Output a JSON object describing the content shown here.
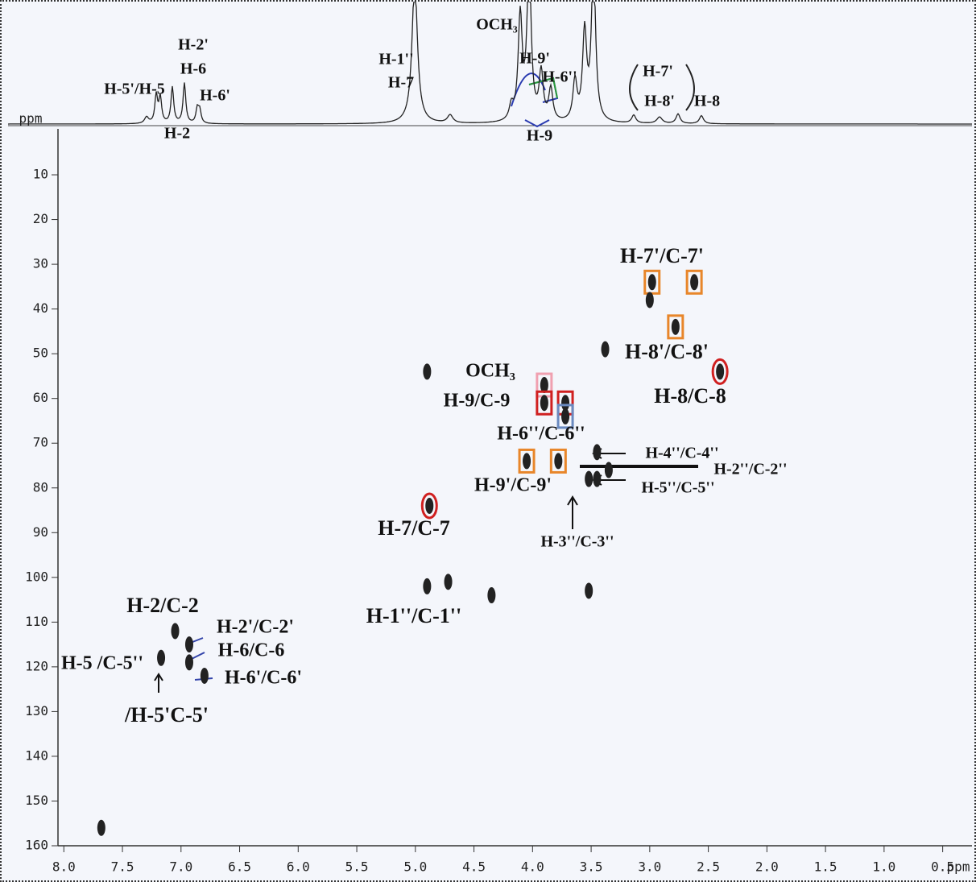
{
  "chart_data": {
    "type": "scatter",
    "x": [
      2.98,
      2.62,
      2.78,
      2.4,
      3.9,
      3.9,
      3.72,
      3.72,
      4.05,
      3.78,
      3.45,
      3.35,
      3.45,
      3.52,
      4.88,
      4.9,
      4.72,
      4.35,
      3.52,
      3.38,
      7.05,
      6.93,
      6.93,
      6.8,
      7.17,
      7.68,
      4.9,
      3.0
    ],
    "values": [
      34,
      34,
      44,
      54,
      57,
      61,
      61,
      64,
      74,
      74,
      72,
      76,
      78,
      78,
      84,
      102,
      101,
      104,
      103,
      49,
      112,
      115,
      119,
      122,
      118,
      156,
      54,
      38
    ],
    "color": "#222222",
    "xlim": [
      8.05,
      0.25
    ],
    "ylim": [
      0,
      160
    ],
    "xticks": [
      {
        "value": 8,
        "label": "8.0"
      },
      {
        "value": 7.5,
        "label": "7.5"
      },
      {
        "value": 7,
        "label": "7.0"
      },
      {
        "value": 6.5,
        "label": "6.5"
      },
      {
        "value": 6,
        "label": "6.0"
      },
      {
        "value": 5.5,
        "label": "5.5"
      },
      {
        "value": 5,
        "label": "5.0"
      },
      {
        "value": 4.5,
        "label": "4.5"
      },
      {
        "value": 4,
        "label": "4.0"
      },
      {
        "value": 3.5,
        "label": "3.5"
      },
      {
        "value": 3,
        "label": "3.0"
      },
      {
        "value": 2.5,
        "label": "2.5"
      },
      {
        "value": 2,
        "label": "2.0"
      },
      {
        "value": 1.5,
        "label": "1.5"
      },
      {
        "value": 1,
        "label": "1.0"
      },
      {
        "value": 0.5,
        "label": "0.5"
      }
    ],
    "yticks": [
      10,
      20,
      30,
      40,
      50,
      60,
      70,
      80,
      90,
      100,
      110,
      120,
      130,
      140,
      150,
      160
    ],
    "x_label": "ppm",
    "y_label": "ppm",
    "annotations": [
      "H-7'/C-7'",
      "H-8'/C-8'",
      "H-8/C-8",
      "OCH₃",
      "H-9/C-9",
      "H-6''/C-6''",
      "H-4''/C-4''",
      "H-2''/C-2''",
      "H-5''/C-5''",
      "H-9'/C-9'",
      "H-7/C-7",
      "H-3''/C-3''",
      "H-1''/C-1''",
      "H-2/C-2",
      "H-2'/C-2'",
      "H-6/C-6",
      "H-6'/C-6'",
      "H-5 /C-5''",
      "/H-5'C-5'"
    ],
    "projection_labels": [
      "H-5'/H-5",
      "H-2'",
      "H-6",
      "H-6'",
      "H-2",
      "H-1''",
      "H-7",
      "OCH₃",
      "H-9'",
      "H-6''",
      "H-9",
      "H-7'",
      "H-8'",
      "H-8"
    ]
  }
}
